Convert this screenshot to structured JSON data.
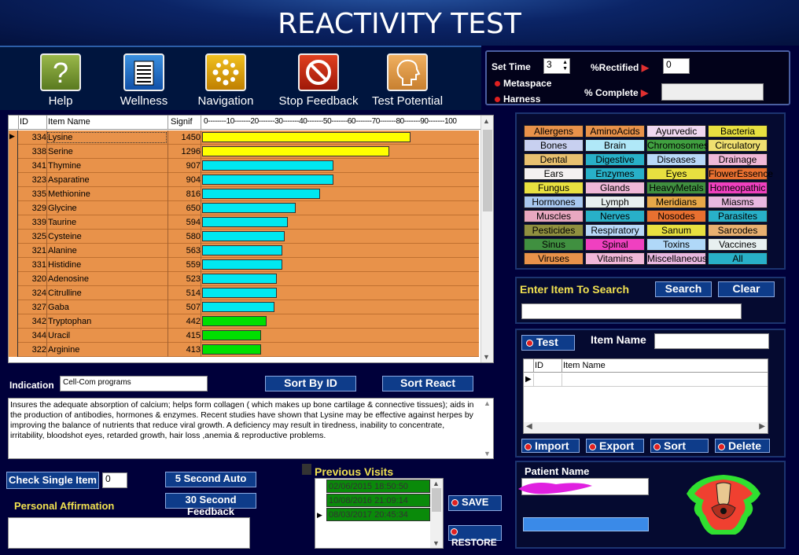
{
  "title": "REACTIVITY TEST",
  "toolbar": [
    {
      "label": "Help",
      "icon": "help-icon"
    },
    {
      "label": "Wellness",
      "icon": "list-icon"
    },
    {
      "label": "Navigation",
      "icon": "navigation-icon"
    },
    {
      "label": "Stop Feedback",
      "icon": "stop-icon"
    },
    {
      "label": "Test Potential",
      "icon": "head-icon"
    }
  ],
  "settings": {
    "set_time_label": "Set Time",
    "set_time_value": "3",
    "metaspace_label": "Metaspace",
    "harness_label": "Harness",
    "rectified_label": "%Rectified",
    "rectified_value": "0",
    "complete_label": "% Complete",
    "complete_value": ""
  },
  "grid": {
    "headers": {
      "id": "ID",
      "name": "Item Name",
      "signif": "Signif",
      "scale": "0--------10-------20-------30-------40-------50-------60-------70-------80-------90-------100"
    },
    "rows": [
      {
        "id": "334",
        "name": "Lysine",
        "signif": "1450",
        "percent": 78,
        "color": "#ffff00",
        "selected": true
      },
      {
        "id": "338",
        "name": "Serine",
        "signif": "1296",
        "percent": 70,
        "color": "#ffff00"
      },
      {
        "id": "341",
        "name": "Thymine",
        "signif": "907",
        "percent": 49,
        "color": "#00e8f0"
      },
      {
        "id": "323",
        "name": "Asparatine",
        "signif": "904",
        "percent": 49,
        "color": "#00e8f0"
      },
      {
        "id": "335",
        "name": "Methionine",
        "signif": "816",
        "percent": 44,
        "color": "#00e8f0"
      },
      {
        "id": "329",
        "name": "Glycine",
        "signif": "650",
        "percent": 35,
        "color": "#00e8f0"
      },
      {
        "id": "339",
        "name": "Taurine",
        "signif": "594",
        "percent": 32,
        "color": "#00e8f0"
      },
      {
        "id": "325",
        "name": "Cysteine",
        "signif": "580",
        "percent": 31,
        "color": "#00e8f0"
      },
      {
        "id": "321",
        "name": "Alanine",
        "signif": "563",
        "percent": 30,
        "color": "#00e8f0"
      },
      {
        "id": "331",
        "name": "Histidine",
        "signif": "559",
        "percent": 30,
        "color": "#00e8f0"
      },
      {
        "id": "320",
        "name": "Adenosine",
        "signif": "523",
        "percent": 28,
        "color": "#00e8f0"
      },
      {
        "id": "324",
        "name": "Citrulline",
        "signif": "514",
        "percent": 28,
        "color": "#00e8f0"
      },
      {
        "id": "327",
        "name": "Gaba",
        "signif": "507",
        "percent": 27,
        "color": "#00e8f0"
      },
      {
        "id": "342",
        "name": "Tryptophan",
        "signif": "442",
        "percent": 24,
        "color": "#00e000"
      },
      {
        "id": "344",
        "name": "Uracil",
        "signif": "415",
        "percent": 22,
        "color": "#00e000"
      },
      {
        "id": "322",
        "name": "Arginine",
        "signif": "413",
        "percent": 22,
        "color": "#00e000"
      }
    ]
  },
  "categories": [
    {
      "label": "Allergens",
      "color": "#e8924a"
    },
    {
      "label": "AminoAcids",
      "color": "#e8924a"
    },
    {
      "label": "Ayurvedic",
      "color": "#f0d8f0"
    },
    {
      "label": "Bacteria",
      "color": "#e8e040"
    },
    {
      "label": "Bones",
      "color": "#c8d0f0"
    },
    {
      "label": "Brain",
      "color": "#b0e8f8"
    },
    {
      "label": "Chromosomes",
      "color": "#40a040"
    },
    {
      "label": "Circulatory",
      "color": "#f0e070"
    },
    {
      "label": "Dental",
      "color": "#e8c070"
    },
    {
      "label": "Digestive",
      "color": "#28b0c8"
    },
    {
      "label": "Diseases",
      "color": "#b8d8f8"
    },
    {
      "label": "Drainage",
      "color": "#f0b8d8"
    },
    {
      "label": "Ears",
      "color": "#f4f0f0"
    },
    {
      "label": "Enzymes",
      "color": "#28b0c8"
    },
    {
      "label": "Eyes",
      "color": "#e8e040"
    },
    {
      "label": "FlowerEssence",
      "color": "#e87030"
    },
    {
      "label": "Fungus",
      "color": "#e8e040"
    },
    {
      "label": "Glands",
      "color": "#f0b8d8"
    },
    {
      "label": "HeavyMetals",
      "color": "#409040"
    },
    {
      "label": "Homeopathic",
      "color": "#f040c0"
    },
    {
      "label": "Hormones",
      "color": "#a8c8f0"
    },
    {
      "label": "Lymph",
      "color": "#e8f0f0"
    },
    {
      "label": "Meridians",
      "color": "#e8a848"
    },
    {
      "label": "Miasms",
      "color": "#e8b8e0"
    },
    {
      "label": "Muscles",
      "color": "#e8a8c0"
    },
    {
      "label": "Nerves",
      "color": "#28b0c8"
    },
    {
      "label": "Nosodes",
      "color": "#e87030"
    },
    {
      "label": "Parasites",
      "color": "#28b0c8"
    },
    {
      "label": "Pesticides",
      "color": "#909040"
    },
    {
      "label": "Respiratory",
      "color": "#b8d8f8"
    },
    {
      "label": "Sanum",
      "color": "#e8e040"
    },
    {
      "label": "Sarcodes",
      "color": "#e8b070"
    },
    {
      "label": "Sinus",
      "color": "#409040"
    },
    {
      "label": "Spinal",
      "color": "#f040c0"
    },
    {
      "label": "Toxins",
      "color": "#b0d8f8"
    },
    {
      "label": "Vaccines",
      "color": "#e8f0f0"
    },
    {
      "label": "Viruses",
      "color": "#e8924a"
    },
    {
      "label": "Vitamins",
      "color": "#f0b8d8"
    },
    {
      "label": "Miscellaneous",
      "color": "#e8b8e0"
    },
    {
      "label": "All",
      "color": "#28b0c8"
    }
  ],
  "search": {
    "label": "Enter Item To Search",
    "search_btn": "Search",
    "clear_btn": "Clear",
    "value": ""
  },
  "test": {
    "test_btn": "Test",
    "item_name_label": "Item Name",
    "item_name_value": "",
    "col_id": "ID",
    "col_name": "Item Name",
    "import_btn": "Import",
    "export_btn": "Export",
    "sort_btn": "Sort",
    "delete_btn": "Delete"
  },
  "patient": {
    "label": "Patient Name",
    "value": ""
  },
  "indication": {
    "label": "Indication",
    "value": "Cell-Com programs",
    "sort_id_btn": "Sort  By  ID",
    "sort_react_btn": "Sort React",
    "description": "Insures the adequate absorption of calcium; helps form collagen ( which makes up bone cartilage & connective tissues); aids in the production of antibodies, hormones & enzymes. Recent studies have shown that Lysine may be effective against herpes by improving the balance of nutrients that reduce viral growth. A deficiency may result in tiredness, inability to concentrate, irritability, bloodshot eyes, retarded growth, hair loss ,anemia & reproductive problems."
  },
  "bottom": {
    "check_single_btn": "Check Single Item",
    "check_single_value": "0",
    "five_sec_btn": "5 Second Auto",
    "thirty_sec_btn": "30 Second Feedback",
    "affirmation_label": "Personal Affirmation",
    "affirmation_value": "",
    "visits_label": "Previous Visits",
    "visits": [
      "02/06/2015 18:50:50",
      "10/08/2016 21:09:14",
      "08/03/2017 20:45:34"
    ],
    "save_btn": "SAVE",
    "restore_btn": "RESTORE"
  }
}
